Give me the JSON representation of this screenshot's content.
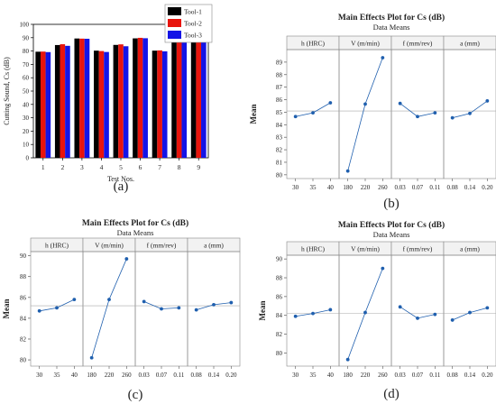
{
  "captions": [
    "(a)",
    "(b)",
    "(c)",
    "(d)"
  ],
  "colors": {
    "tool1": "#000000",
    "tool2": "#e8140c",
    "tool3": "#1414e6",
    "line": "#1f5fae",
    "ref": "#a9a9a9"
  },
  "chart_data": [
    {
      "type": "bar",
      "caption": "(a)",
      "categories": [
        "1",
        "2",
        "3",
        "4",
        "5",
        "6",
        "7",
        "8",
        "9"
      ],
      "series": [
        {
          "name": "Tool-1",
          "values": [
            79.5,
            84.5,
            89.4,
            80.3,
            84.6,
            89.5,
            80.3,
            87.3,
            88.8
          ]
        },
        {
          "name": "Tool-2",
          "values": [
            79.6,
            85.1,
            89.3,
            80.0,
            85.0,
            89.9,
            80.5,
            87.0,
            89.6
          ]
        },
        {
          "name": "Tool-3",
          "values": [
            79.2,
            83.9,
            89.2,
            79.3,
            83.6,
            89.6,
            79.8,
            86.4,
            88.4
          ]
        }
      ],
      "xlabel": "Test Nos.",
      "ylabel": "Cutting Sound, Cs (dB)",
      "yticks": [
        "0",
        "10",
        "20",
        "30",
        "40",
        "50",
        "60",
        "70",
        "80",
        "90",
        "100"
      ],
      "ylim": [
        0,
        100
      ],
      "legend": "top-right"
    },
    {
      "type": "line",
      "caption": "(b)",
      "title": "Main Effects Plot for Cs (dB)",
      "subtitle": "Data Means",
      "ylabel": "Mean",
      "ylim": [
        79.7,
        90.0
      ],
      "yticks": [
        "80",
        "81",
        "82",
        "83",
        "84",
        "85",
        "86",
        "87",
        "88",
        "89"
      ],
      "reference": 85.1,
      "panels": [
        {
          "label": "h (HRC)",
          "levels": [
            "30",
            "35",
            "40"
          ],
          "means": [
            84.65,
            84.95,
            85.75
          ]
        },
        {
          "label": "V (m/min)",
          "levels": [
            "180",
            "220",
            "260"
          ],
          "means": [
            80.3,
            85.65,
            89.35
          ]
        },
        {
          "label": "f (mm/rev)",
          "levels": [
            "0.03",
            "0.07",
            "0.11"
          ],
          "means": [
            85.7,
            84.65,
            84.95
          ]
        },
        {
          "label": "a (mm)",
          "levels": [
            "0.08",
            "0.14",
            "0.20"
          ],
          "means": [
            84.55,
            84.9,
            85.9
          ]
        }
      ]
    },
    {
      "type": "line",
      "caption": "(c)",
      "title": "Main Effects Plot for Cs (dB)",
      "subtitle": "Data Means",
      "ylabel": "Mean",
      "ylim": [
        79.4,
        90.4
      ],
      "yticks": [
        "80",
        "82",
        "84",
        "86",
        "88",
        "90"
      ],
      "reference": 85.2,
      "panels": [
        {
          "label": "h (HRC)",
          "levels": [
            "30",
            "35",
            "40"
          ],
          "means": [
            84.7,
            85.0,
            85.8
          ]
        },
        {
          "label": "V (m/min)",
          "levels": [
            "180",
            "220",
            "260"
          ],
          "means": [
            80.2,
            85.8,
            89.7
          ]
        },
        {
          "label": "f (mm/rev)",
          "levels": [
            "0.03",
            "0.07",
            "0.11"
          ],
          "means": [
            85.6,
            84.9,
            85.0
          ]
        },
        {
          "label": "a (mm)",
          "levels": [
            "0.08",
            "0.14",
            "0.20"
          ],
          "means": [
            84.8,
            85.3,
            85.5
          ]
        }
      ]
    },
    {
      "type": "line",
      "caption": "(d)",
      "title": "Main Effects Plot for Cs (dB)",
      "subtitle": "Data Means",
      "ylabel": "Mean",
      "ylim": [
        78.6,
        90.4
      ],
      "yticks": [
        "80",
        "82",
        "84",
        "86",
        "88",
        "90"
      ],
      "reference": 84.2,
      "panels": [
        {
          "label": "h (HRC)",
          "levels": [
            "30",
            "35",
            "40"
          ],
          "means": [
            83.9,
            84.2,
            84.6
          ]
        },
        {
          "label": "V (m/min)",
          "levels": [
            "180",
            "220",
            "260"
          ],
          "means": [
            79.3,
            84.3,
            89.0
          ]
        },
        {
          "label": "f (mm/rev)",
          "levels": [
            "0.03",
            "0.07",
            "0.11"
          ],
          "means": [
            84.9,
            83.7,
            84.1
          ]
        },
        {
          "label": "a (mm)",
          "levels": [
            "0.08",
            "0.14",
            "0.20"
          ],
          "means": [
            83.5,
            84.3,
            84.8
          ]
        }
      ]
    }
  ]
}
